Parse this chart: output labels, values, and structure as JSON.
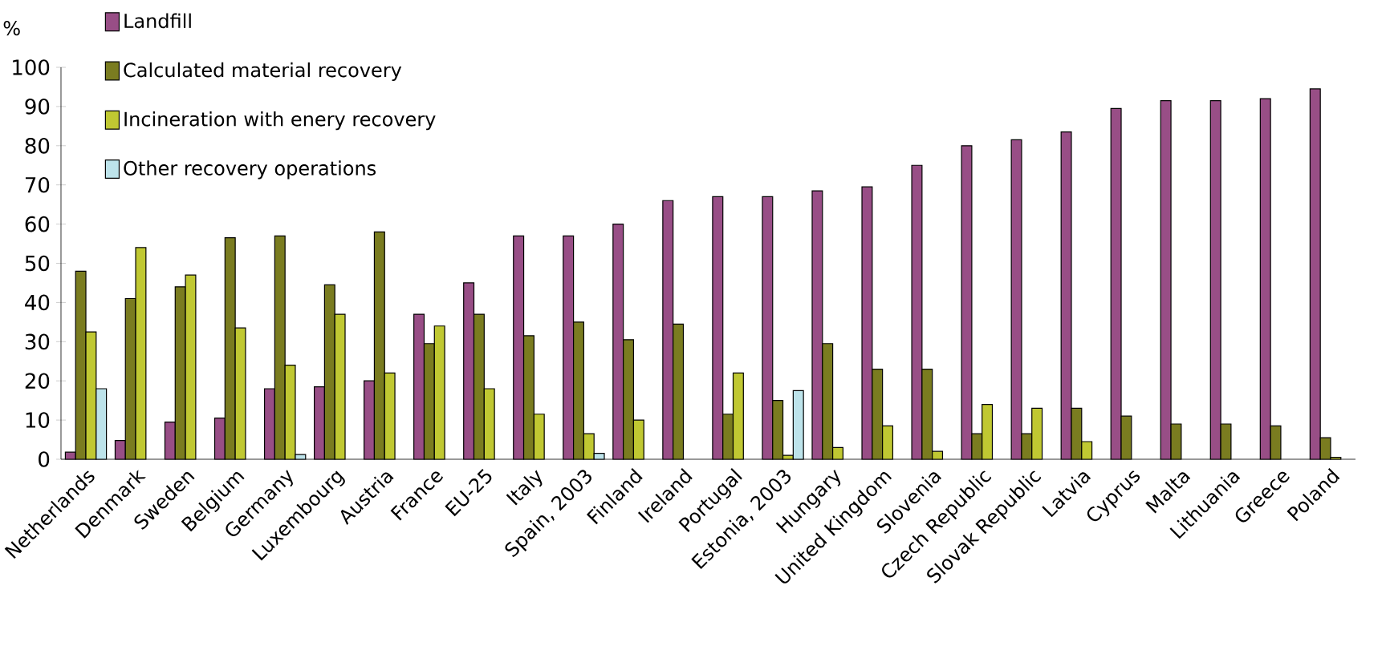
{
  "chart_data": {
    "type": "bar",
    "ylabel": "%",
    "categories": [
      "Netherlands",
      "Denmark",
      "Sweden",
      "Belgium",
      "Germany",
      "Luxembourg",
      "Austria",
      "France",
      "EU-25",
      "Italy",
      "Spain, 2003",
      "Finland",
      "Ireland",
      "Portugal",
      "Estonia, 2003",
      "Hungary",
      "United Kingdom",
      "Slovenia",
      "Czech Republic",
      "Slovak Republic",
      "Latvia",
      "Cyprus",
      "Malta",
      "Lithuania",
      "Greece",
      "Poland"
    ],
    "series": [
      {
        "name": "Landfill",
        "color": "#984e86",
        "values": [
          1.8,
          4.8,
          9.5,
          10.5,
          18,
          18.5,
          20,
          37,
          45,
          57,
          57,
          60,
          66,
          67,
          67,
          68.5,
          69.5,
          75,
          80,
          81.5,
          83.5,
          89.5,
          91.5,
          91.5,
          92,
          94.5
        ]
      },
      {
        "name": "Calculated material recovery",
        "color": "#7a7c20",
        "values": [
          48,
          41,
          44,
          56.5,
          57,
          44.5,
          58,
          29.5,
          37,
          31.5,
          35,
          30.5,
          34.5,
          11.5,
          15,
          29.5,
          23,
          23,
          6.5,
          6.5,
          13,
          11,
          9,
          9,
          8.5,
          5.5
        ]
      },
      {
        "name": "Incineration with enery recovery",
        "color": "#c0c832",
        "values": [
          32.5,
          54,
          47,
          33.5,
          24,
          37,
          22,
          34,
          18,
          11.5,
          6.5,
          10,
          null,
          22,
          1,
          3,
          8.5,
          2,
          14,
          13,
          4.5,
          null,
          null,
          null,
          null,
          0.5
        ]
      },
      {
        "name": "Other recovery operations",
        "color": "#bde3ea",
        "values": [
          18,
          null,
          null,
          null,
          1.2,
          null,
          null,
          null,
          null,
          null,
          1.5,
          null,
          null,
          null,
          17.5,
          null,
          null,
          null,
          null,
          null,
          null,
          null,
          null,
          null,
          null,
          null
        ]
      }
    ],
    "ylim": [
      0,
      100
    ],
    "yticks": [
      0,
      10,
      20,
      30,
      40,
      50,
      60,
      70,
      80,
      90,
      100
    ],
    "grid": false,
    "legend": "top left"
  }
}
